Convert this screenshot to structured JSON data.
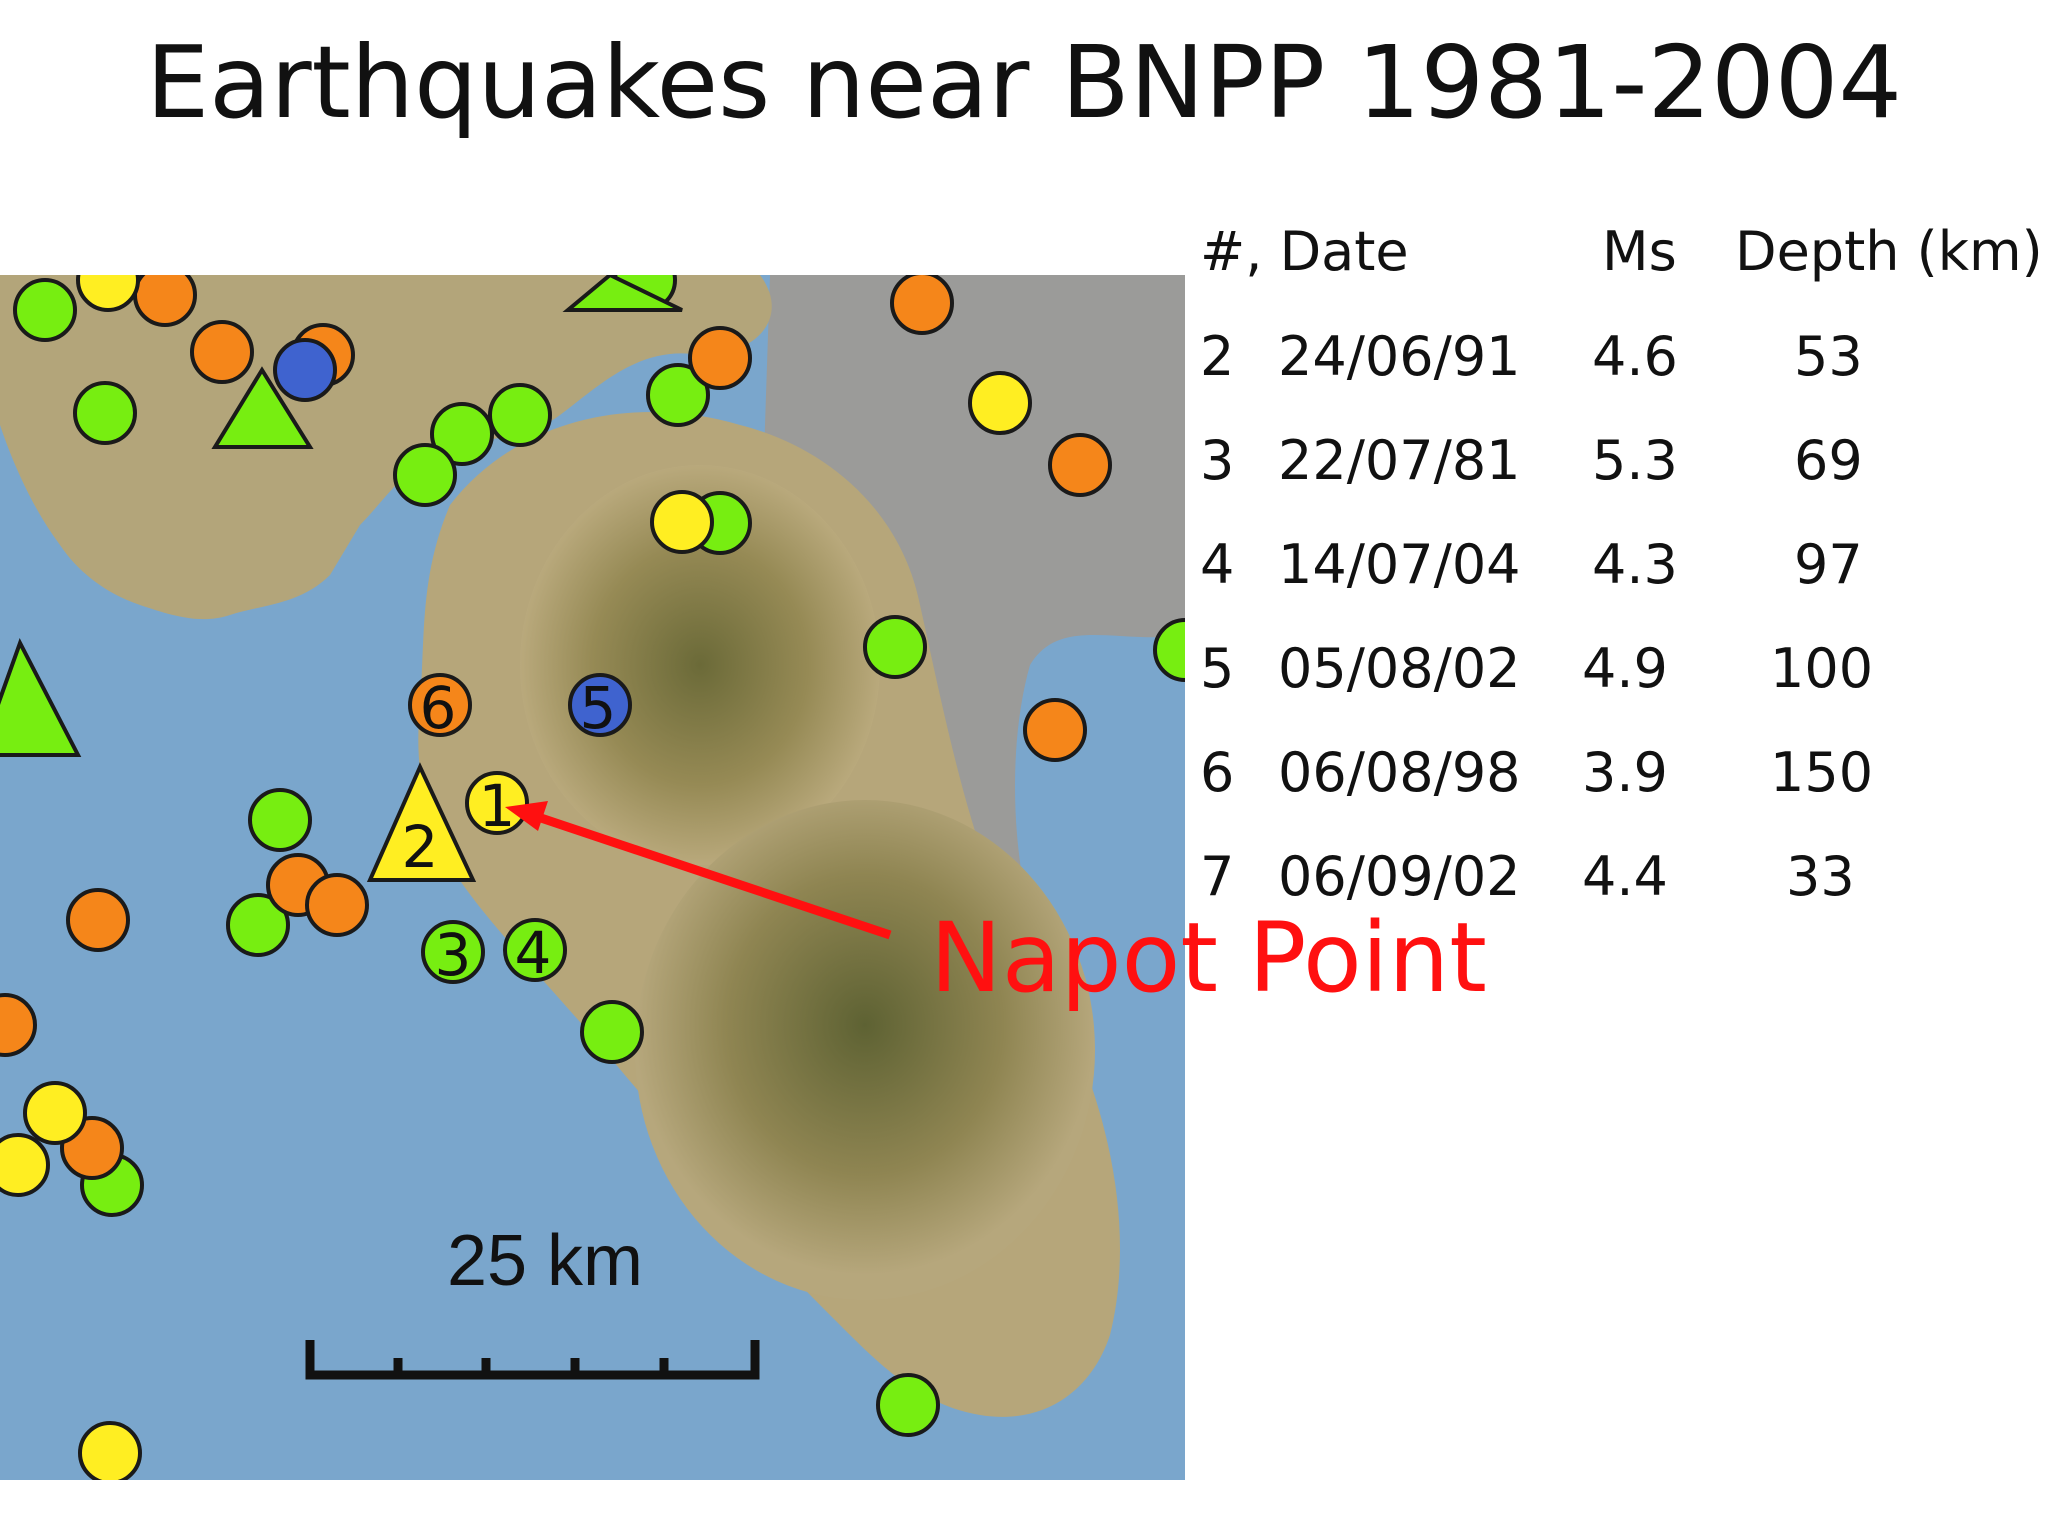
{
  "title": "Earthquakes near BNPP 1981-2004",
  "table": {
    "headers": {
      "num_date": "#, Date",
      "ms": "Ms",
      "depth": "Depth (km)"
    },
    "rows": [
      {
        "num": "2",
        "date": "24/06/91",
        "ms": "4.6",
        "depth": "53"
      },
      {
        "num": "3",
        "date": "22/07/81",
        "ms": "5.3",
        "depth": "69"
      },
      {
        "num": "4",
        "date": "14/07/04",
        "ms": "4.3",
        "depth": "97"
      },
      {
        "num": "5",
        "date": "05/08/02",
        "ms": "4.9",
        "depth": "100"
      },
      {
        "num": "6",
        "date": "06/08/98",
        "ms": "3.9",
        "depth": "150"
      },
      {
        "num": "7",
        "date": "06/09/02",
        "ms": "4.4",
        "depth": "33"
      }
    ]
  },
  "map": {
    "annotation": "Napot Point",
    "scale_label": "25 km",
    "markers": {
      "m1": "1",
      "m2": "2",
      "m3": "3",
      "m4": "4",
      "m5": "5",
      "m6": "6"
    },
    "colors": {
      "sea": "#7aa6cc",
      "land": "#b6a67a",
      "lowland": "#9a9a9a",
      "green_marker": "#77ee11",
      "orange_marker": "#f5861a",
      "yellow_marker": "#ffee22",
      "blue_marker": "#3f63cf",
      "arrow": "#ff1010"
    }
  }
}
